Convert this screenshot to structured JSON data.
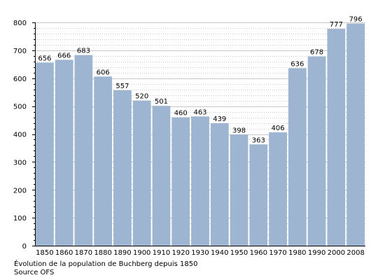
{
  "chart_data": {
    "type": "bar",
    "categories": [
      "1850",
      "1860",
      "1870",
      "1880",
      "1890",
      "1900",
      "1910",
      "1920",
      "1930",
      "1940",
      "1950",
      "1960",
      "1970",
      "1980",
      "1990",
      "2000",
      "2008"
    ],
    "values": [
      656,
      666,
      683,
      606,
      557,
      520,
      501,
      460,
      463,
      439,
      398,
      363,
      406,
      636,
      678,
      777,
      796
    ],
    "ylim": [
      0,
      800
    ],
    "yticks": [
      0,
      100,
      200,
      300,
      400,
      500,
      600,
      700,
      800
    ],
    "grid": true,
    "bar_color": "#9db5d0",
    "grid_color": "#c8c8c8"
  },
  "caption": {
    "line1": "Évolution de la population de Buchberg depuis 1850",
    "line2": "Source OFS"
  }
}
